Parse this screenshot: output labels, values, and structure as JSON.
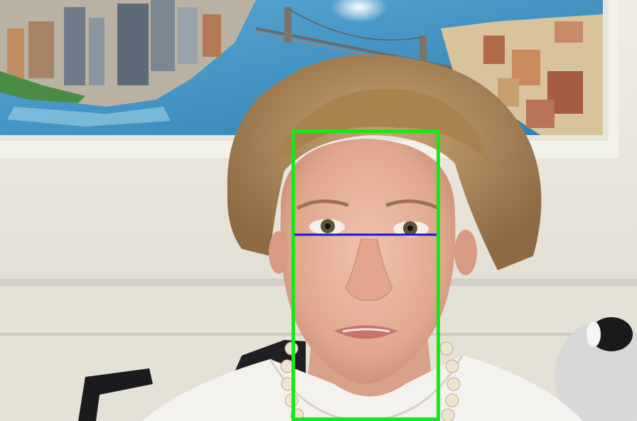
{
  "image": {
    "kind": "photograph",
    "subject": "woman-face-portrait",
    "background": "city-map-poster-on-white-wall"
  },
  "annotations": {
    "face_box_color": "#19e619",
    "eye_line_color": "#1a1ad6"
  },
  "colors": {
    "wall": "#e9e6dc",
    "poster_frame": "#f2f1ea",
    "poster_water": "#3f8fbf",
    "hair": "#b08a5a",
    "skin": "#e6b39c",
    "shirt": "#f4f2ee",
    "chair": "#1e1e20",
    "pearls": "#efe4cf"
  }
}
